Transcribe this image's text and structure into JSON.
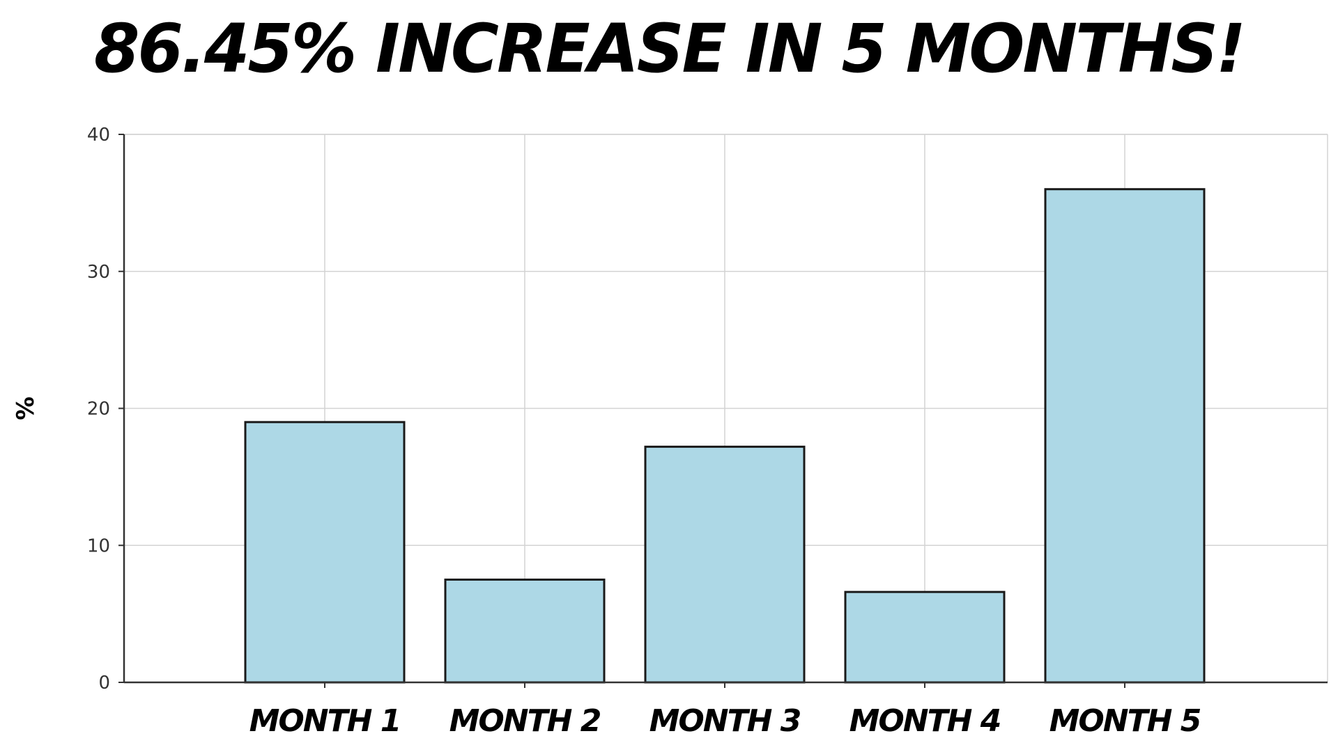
{
  "chart_data": {
    "type": "bar",
    "title": "86.45% INCREASE IN 5 MONTHS!",
    "xlabel": "",
    "ylabel": "%",
    "categories": [
      "MONTH 1",
      "MONTH 2",
      "MONTH 3",
      "MONTH 4",
      "MONTH 5"
    ],
    "values": [
      19.0,
      7.5,
      17.2,
      6.6,
      36.0
    ],
    "ylim": [
      0,
      40
    ],
    "yticks": [
      0,
      10,
      20,
      30,
      40
    ],
    "grid": true,
    "legend": "none",
    "colors": {
      "bar_fill": "#add8e6",
      "bar_stroke": "#1a1a1a",
      "grid": "#d3d3d3",
      "axis": "#333333"
    }
  }
}
